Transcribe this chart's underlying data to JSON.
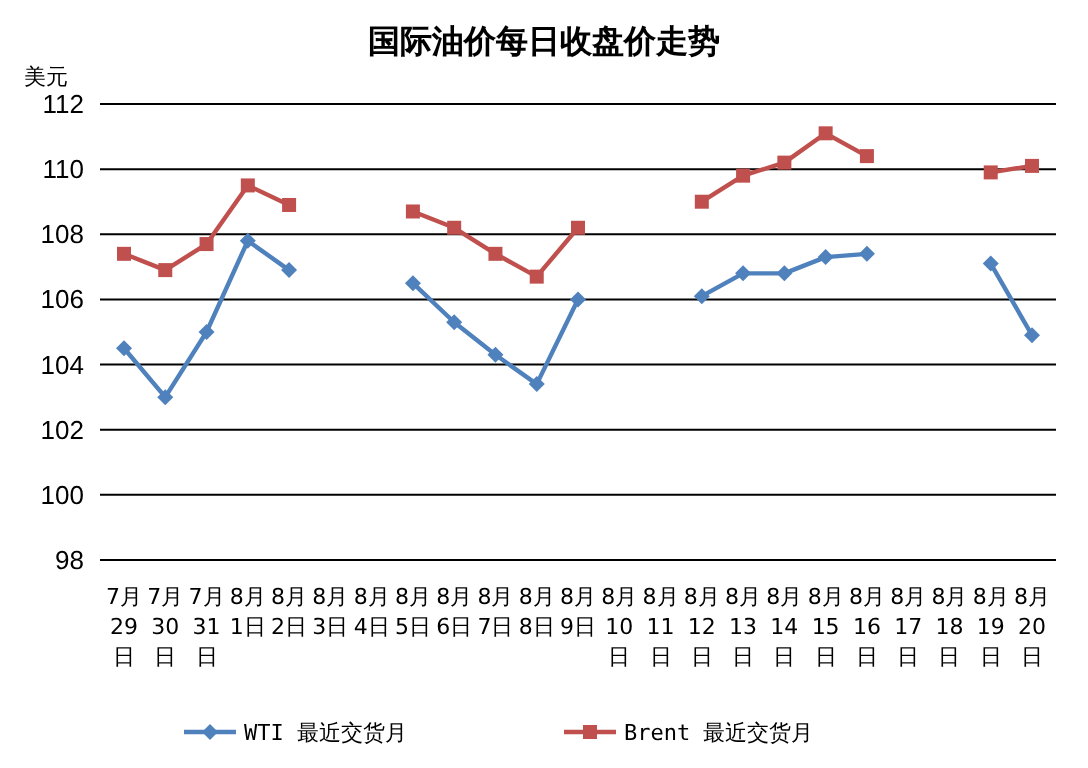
{
  "chart_data": {
    "type": "line",
    "title": "国际油价每日收盘价走势",
    "ylabel": "美元",
    "categories": [
      "7月29日",
      "7月30日",
      "7月31日",
      "8月1日",
      "8月2日",
      "8月3日",
      "8月4日",
      "8月5日",
      "8月6日",
      "8月7日",
      "8月8日",
      "8月9日",
      "8月10日",
      "8月11日",
      "8月12日",
      "8月13日",
      "8月14日",
      "8月15日",
      "8月16日",
      "8月17日",
      "8月18日",
      "8月19日",
      "8月20日"
    ],
    "series": [
      {
        "name": "WTI 最近交货月",
        "color": "#4f81bd",
        "marker": "diamond",
        "values": [
          104.5,
          103.0,
          105.0,
          107.8,
          106.9,
          null,
          null,
          106.5,
          105.3,
          104.3,
          103.4,
          106.0,
          null,
          null,
          106.1,
          106.8,
          106.8,
          107.3,
          107.4,
          null,
          null,
          107.1,
          104.9
        ]
      },
      {
        "name": "Brent 最近交货月",
        "color": "#c0504d",
        "marker": "square",
        "values": [
          107.4,
          106.9,
          107.7,
          109.5,
          108.9,
          null,
          null,
          108.7,
          108.2,
          107.4,
          106.7,
          108.2,
          null,
          null,
          109.0,
          109.8,
          110.2,
          111.1,
          110.4,
          null,
          null,
          109.9,
          110.1
        ]
      }
    ],
    "ylim": [
      98,
      112
    ],
    "yticks": [
      98,
      100,
      102,
      104,
      106,
      108,
      110,
      112
    ],
    "grid": "y",
    "legend": "bottom",
    "line_style": "solid"
  }
}
